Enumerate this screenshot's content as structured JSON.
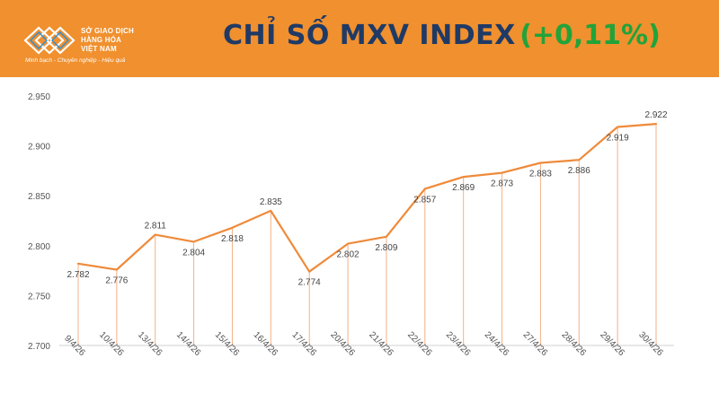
{
  "header": {
    "logo_lines": [
      "SỞ GIAO DỊCH",
      "HÀNG HÓA",
      "VIỆT NAM"
    ],
    "tagline": "Minh bạch - Chuyên nghiệp - Hiệu quả",
    "title": "CHỈ SỐ MXV INDEX",
    "change": "(+0,11%)",
    "colors": {
      "banner": "#f0902e",
      "title": "#1f3a66",
      "change": "#22a33a"
    }
  },
  "chart_data": {
    "type": "line",
    "title": "",
    "xlabel": "",
    "ylabel": "",
    "categories": [
      "9/4/26",
      "10/4/26",
      "13/4/26",
      "14/4/26",
      "15/4/26",
      "16/4/26",
      "17/4/26",
      "20/4/26",
      "21/4/26",
      "22/4/26",
      "23/4/26",
      "24/4/26",
      "27/4/26",
      "28/4/26",
      "29/4/26",
      "30/4/26"
    ],
    "values": [
      2782,
      2776,
      2811,
      2804,
      2818,
      2835,
      2774,
      2802,
      2809,
      2857,
      2869,
      2873,
      2883,
      2886,
      2919,
      2922
    ],
    "data_labels": [
      "2.782",
      "2.776",
      "2.811",
      "2.804",
      "2.818",
      "2.835",
      "2.774",
      "2.802",
      "2.809",
      "2.857",
      "2.869",
      "2.873",
      "2.883",
      "2.886",
      "2.919",
      "2.922"
    ],
    "ylim": [
      2700,
      2950
    ],
    "yticks": [
      2700,
      2750,
      2800,
      2850,
      2900,
      2950
    ],
    "ytick_labels": [
      "2.700",
      "2.750",
      "2.800",
      "2.850",
      "2.900",
      "2.950"
    ],
    "grid": false,
    "drop_lines": true,
    "line_color": "#ef8a3a",
    "drop_line_color": "#f3b184"
  }
}
